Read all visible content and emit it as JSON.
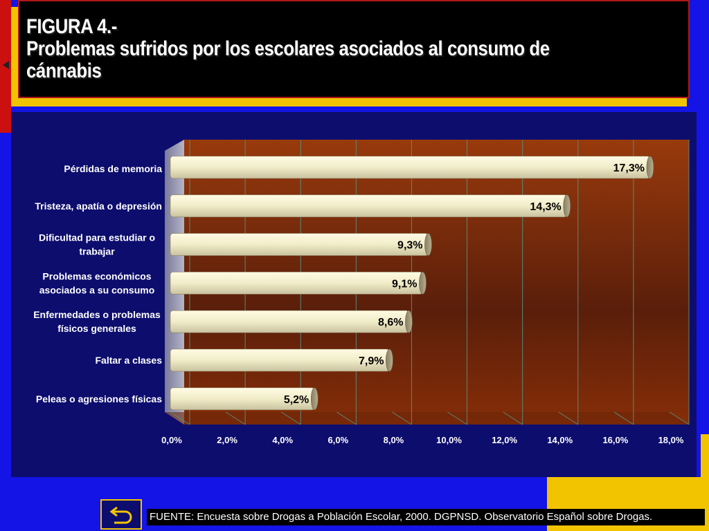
{
  "header": {
    "figure_label": "FIGURA 4.-",
    "title_line1": "Problemas sufridos por los escolares asociados al consumo de",
    "title_line2": "cánnabis"
  },
  "footer": {
    "source": "FUENTE: Encuesta sobre Drogas a Población Escolar, 2000. DGPNSD. Observatorio Español sobre Drogas.",
    "back_icon": "return-arrow-icon"
  },
  "colors": {
    "background": "#1414e6",
    "panel": "#0d0d6e",
    "plot_area": "#8a2f08",
    "bar": "#f1ecc8",
    "accent_yellow": "#f2c400",
    "accent_red": "#cc1010"
  },
  "chart_data": {
    "type": "bar",
    "orientation": "horizontal",
    "categories": [
      [
        "Pérdidas de memoria"
      ],
      [
        "Tristeza, apatía o depresión"
      ],
      [
        "Dificultad para estudiar o",
        "trabajar"
      ],
      [
        "Problemas económicos",
        "asociados a su consumo"
      ],
      [
        "Enfermedades o problemas",
        "físicos generales"
      ],
      [
        "Faltar a clases"
      ],
      [
        "Peleas o agresiones físicas"
      ]
    ],
    "values": [
      17.3,
      14.3,
      9.3,
      9.1,
      8.6,
      7.9,
      5.2
    ],
    "value_labels": [
      "17,3%",
      "14,3%",
      "9,3%",
      "9,1%",
      "8,6%",
      "7,9%",
      "5,2%"
    ],
    "xlim": [
      0,
      18
    ],
    "xticks": [
      "0,0%",
      "2,0%",
      "4,0%",
      "6,0%",
      "8,0%",
      "10,0%",
      "12,0%",
      "14,0%",
      "16,0%",
      "18,0%"
    ],
    "grid": true
  }
}
